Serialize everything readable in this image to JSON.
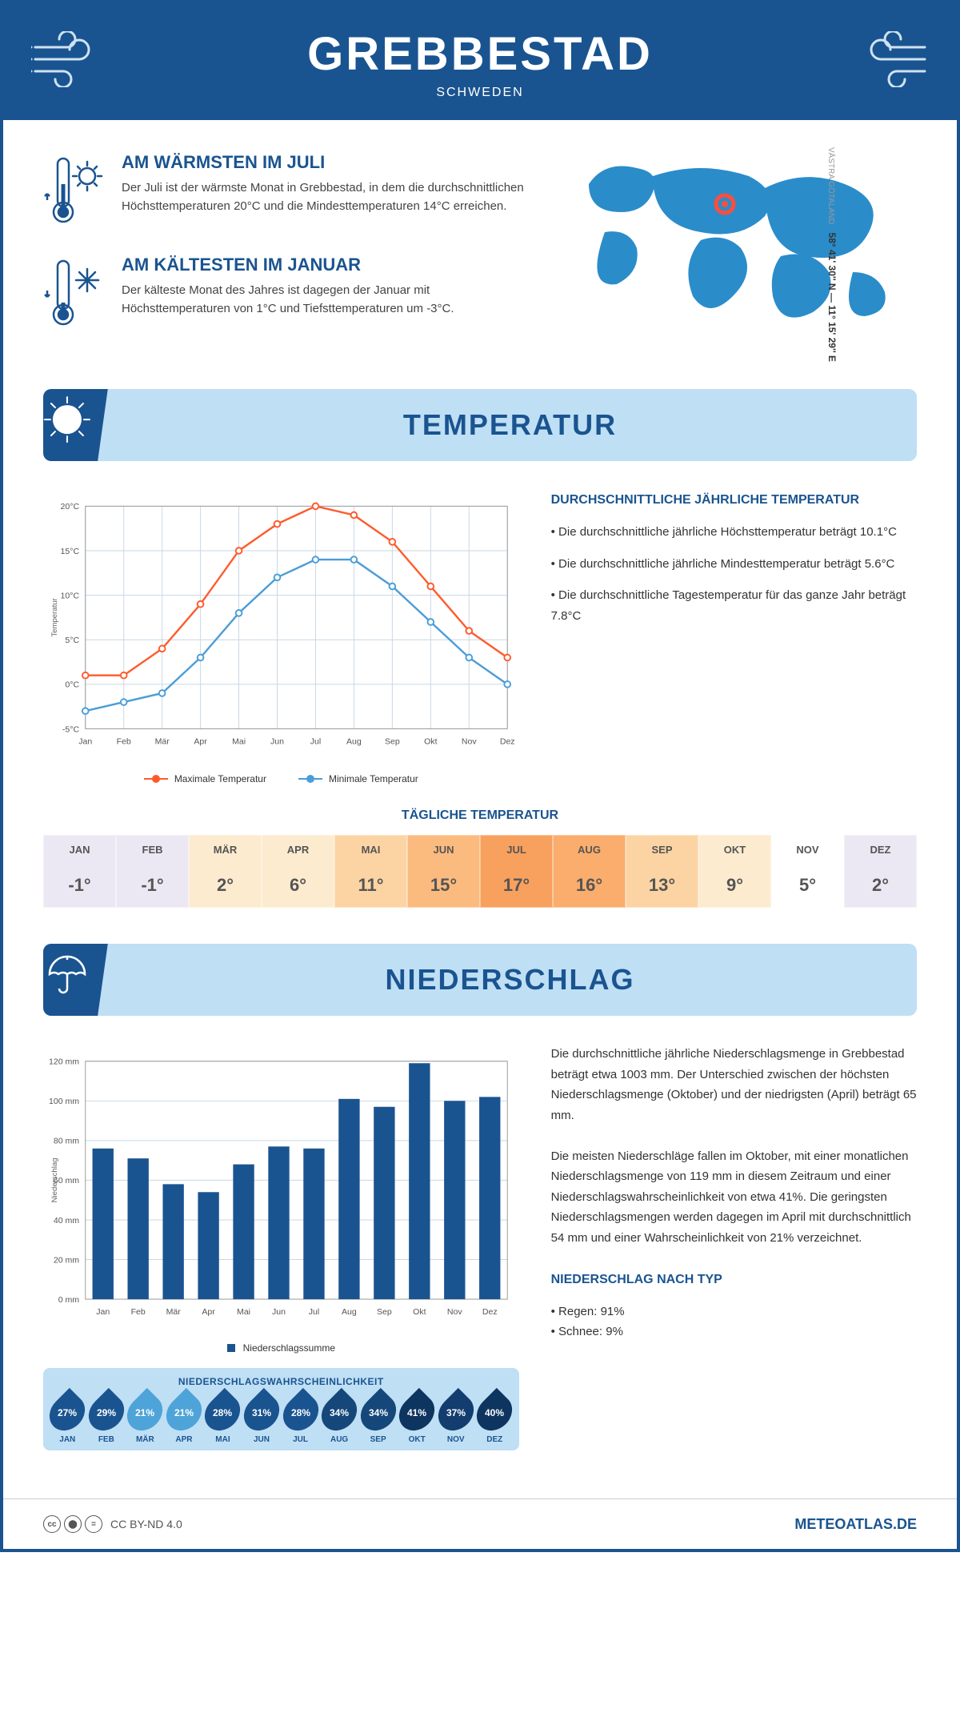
{
  "colors": {
    "primary": "#1a5490",
    "banner": "#bfdff5",
    "map": "#2b8cca",
    "marker": "#ff4d3d",
    "max_line": "#ff5a2c",
    "min_line": "#4a9dd8",
    "grid": "#c8d7e6",
    "axis_text": "#555555"
  },
  "header": {
    "title": "GREBBESTAD",
    "country": "SCHWEDEN"
  },
  "info": {
    "warm": {
      "title": "AM WÄRMSTEN IM JULI",
      "text": "Der Juli ist der wärmste Monat in Grebbestad, in dem die durchschnittlichen Höchsttemperaturen 20°C und die Mindesttemperaturen 14°C erreichen."
    },
    "cold": {
      "title": "AM KÄLTESTEN IM JANUAR",
      "text": "Der kälteste Monat des Jahres ist dagegen der Januar mit Höchsttemperaturen von 1°C und Tiefsttemperaturen um -3°C."
    },
    "coords": "58° 41' 30'' N — 11° 15' 29'' E",
    "region": "VÄSTRA GÖTALAND"
  },
  "temp_section": {
    "title": "TEMPERATUR",
    "desc_title": "DURCHSCHNITTLICHE JÄHRLICHE TEMPERATUR",
    "desc_items": [
      "• Die durchschnittliche jährliche Höchsttemperatur beträgt 10.1°C",
      "• Die durchschnittliche jährliche Mindesttemperatur beträgt 5.6°C",
      "• Die durchschnittliche Tagestemperatur für das ganze Jahr beträgt 7.8°C"
    ],
    "legend_max": "Maximale Temperatur",
    "legend_min": "Minimale Temperatur",
    "chart": {
      "months": [
        "Jan",
        "Feb",
        "Mär",
        "Apr",
        "Mai",
        "Jun",
        "Jul",
        "Aug",
        "Sep",
        "Okt",
        "Nov",
        "Dez"
      ],
      "max": [
        1,
        1,
        4,
        9,
        15,
        18,
        20,
        19,
        16,
        11,
        6,
        3
      ],
      "min": [
        -3,
        -2,
        -1,
        3,
        8,
        12,
        14,
        14,
        11,
        7,
        3,
        0
      ],
      "ylim": [
        -5,
        20
      ],
      "ytick": 5,
      "yunit": "°C",
      "ylabel": "Temperatur"
    },
    "daily_title": "TÄGLICHE TEMPERATUR",
    "daily": {
      "months": [
        "JAN",
        "FEB",
        "MÄR",
        "APR",
        "MAI",
        "JUN",
        "JUL",
        "AUG",
        "SEP",
        "OKT",
        "NOV",
        "DEZ"
      ],
      "vals": [
        "-1°",
        "-1°",
        "2°",
        "6°",
        "11°",
        "15°",
        "17°",
        "16°",
        "13°",
        "9°",
        "5°",
        "2°"
      ],
      "cell_colors": [
        "#ece8f3",
        "#ece8f3",
        "#fcebcf",
        "#fcebcf",
        "#fcd4a4",
        "#fbba7e",
        "#f8a05e",
        "#faad6c",
        "#fcd4a4",
        "#fcebcf",
        "#ffffff",
        "#ece8f3"
      ]
    }
  },
  "precip_section": {
    "title": "NIEDERSCHLAG",
    "chart": {
      "months": [
        "Jan",
        "Feb",
        "Mär",
        "Apr",
        "Mai",
        "Jun",
        "Jul",
        "Aug",
        "Sep",
        "Okt",
        "Nov",
        "Dez"
      ],
      "vals": [
        76,
        71,
        58,
        54,
        68,
        77,
        76,
        101,
        97,
        119,
        100,
        102
      ],
      "ylim": [
        0,
        120
      ],
      "ytick": 20,
      "yunit": " mm",
      "ylabel": "Niederschlag",
      "legend": "Niederschlagssumme"
    },
    "desc1": "Die durchschnittliche jährliche Niederschlagsmenge in Grebbestad beträgt etwa 1003 mm. Der Unterschied zwischen der höchsten Niederschlagsmenge (Oktober) und der niedrigsten (April) beträgt 65 mm.",
    "desc2": "Die meisten Niederschläge fallen im Oktober, mit einer monatlichen Niederschlagsmenge von 119 mm in diesem Zeitraum und einer Niederschlagswahrscheinlichkeit von etwa 41%. Die geringsten Niederschlagsmengen werden dagegen im April mit durchschnittlich 54 mm und einer Wahrscheinlichkeit von 21% verzeichnet.",
    "type_title": "NIEDERSCHLAG NACH TYP",
    "type_items": [
      "• Regen: 91%",
      "• Schnee: 9%"
    ],
    "prob_title": "NIEDERSCHLAGSWAHRSCHEINLICHKEIT",
    "prob": {
      "months": [
        "JAN",
        "FEB",
        "MÄR",
        "APR",
        "MAI",
        "JUN",
        "JUL",
        "AUG",
        "SEP",
        "OKT",
        "NOV",
        "DEZ"
      ],
      "vals": [
        "27%",
        "29%",
        "21%",
        "21%",
        "28%",
        "31%",
        "28%",
        "34%",
        "34%",
        "41%",
        "37%",
        "40%"
      ],
      "colors": [
        "#1a5490",
        "#1a5490",
        "#4ea4d8",
        "#4ea4d8",
        "#1a5490",
        "#1a5490",
        "#1a5490",
        "#15477a",
        "#15477a",
        "#0e3460",
        "#123d6e",
        "#0e3460"
      ]
    }
  },
  "footer": {
    "license": "CC BY-ND 4.0",
    "site": "METEOATLAS.DE"
  }
}
